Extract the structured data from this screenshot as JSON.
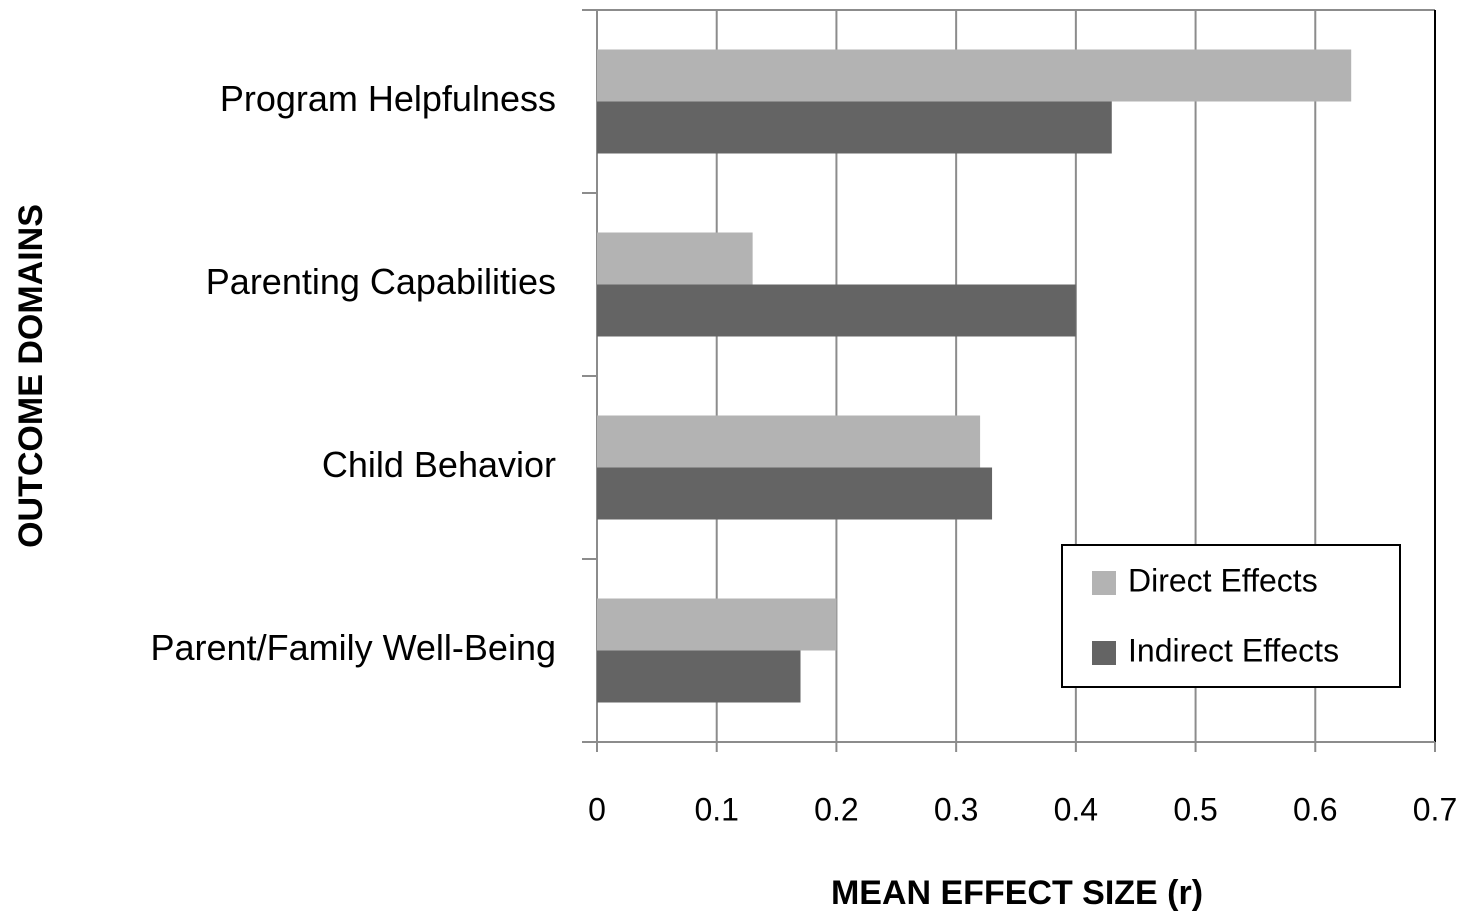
{
  "chart_data": {
    "type": "bar",
    "orientation": "horizontal",
    "xlabel": "MEAN EFFECT SIZE (r)",
    "ylabel": "OUTCOME DOMAINS",
    "categories": [
      "Program Helpfulness",
      "Parenting Capabilities",
      "Child Behavior",
      "Parent/Family Well-Being"
    ],
    "series": [
      {
        "name": "Direct Effects",
        "color": "#b3b3b3",
        "values": [
          0.63,
          0.13,
          0.32,
          0.2
        ]
      },
      {
        "name": "Indirect Effects",
        "color": "#646464",
        "values": [
          0.43,
          0.4,
          0.33,
          0.17
        ]
      }
    ],
    "xlim": [
      0,
      0.7
    ],
    "xticks": [
      0,
      0.1,
      0.2,
      0.3,
      0.4,
      0.5,
      0.6,
      0.7
    ],
    "grid": true,
    "legend": "lower right"
  }
}
